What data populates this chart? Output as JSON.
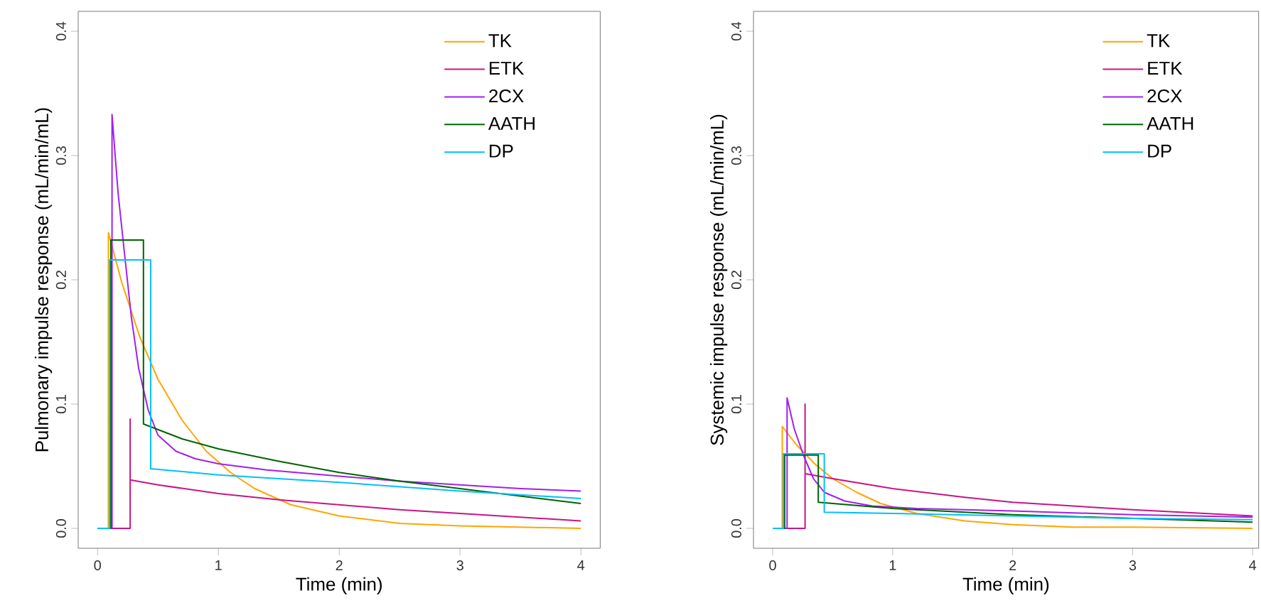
{
  "chart_data": [
    {
      "type": "line",
      "xlabel": "Time (min)",
      "ylabel": "Pulmonary impulse response (mL/min/mL)",
      "xlim": [
        -0.16,
        4.16
      ],
      "ylim": [
        -0.016,
        0.416
      ],
      "xticks": [
        0,
        1,
        2,
        3,
        4
      ],
      "yticks": [
        {
          "value": 0,
          "label": "0.0"
        },
        0.1,
        0.2,
        0.3,
        0.4
      ],
      "legend": "top right",
      "line_style": "solid",
      "marker": "none",
      "series": [
        {
          "name": "TK",
          "color": "#ffa500",
          "x": [
            0,
            0.09,
            0.09,
            0.2,
            0.35,
            0.5,
            0.7,
            0.9,
            1.1,
            1.3,
            1.6,
            2.0,
            2.5,
            3.0,
            3.5,
            4.0
          ],
          "values": [
            0,
            0,
            0.238,
            0.198,
            0.154,
            0.12,
            0.087,
            0.062,
            0.045,
            0.032,
            0.019,
            0.01,
            0.004,
            0.002,
            0.001,
            0.0
          ]
        },
        {
          "name": "ETK",
          "color": "#c71585",
          "x": [
            0,
            0.27,
            0.27,
            0.27,
            0.5,
            1,
            1.5,
            2,
            2.5,
            3,
            3.5,
            4
          ],
          "values": [
            0,
            0,
            0.088,
            0.039,
            0.035,
            0.028,
            0.023,
            0.019,
            0.015,
            0.012,
            0.009,
            0.006
          ]
        },
        {
          "name": "2CX",
          "color": "#a020f0",
          "x": [
            0,
            0.12,
            0.12,
            0.17,
            0.22,
            0.28,
            0.34,
            0.42,
            0.5,
            0.65,
            0.81,
            1.0,
            1.4,
            2,
            2.5,
            3,
            3.5,
            4
          ],
          "values": [
            0,
            0,
            0.333,
            0.27,
            0.224,
            0.17,
            0.129,
            0.095,
            0.075,
            0.062,
            0.056,
            0.052,
            0.047,
            0.042,
            0.038,
            0.035,
            0.032,
            0.03
          ]
        },
        {
          "name": "AATH",
          "color": "#006400",
          "x": [
            0,
            0.11,
            0.11,
            0.38,
            0.38,
            0.7,
            1,
            1.5,
            2,
            2.5,
            3,
            3.5,
            4
          ],
          "values": [
            0,
            0,
            0.232,
            0.232,
            0.084,
            0.072,
            0.064,
            0.054,
            0.045,
            0.038,
            0.032,
            0.026,
            0.02
          ]
        },
        {
          "name": "DP",
          "color": "#00bfff",
          "x": [
            0,
            0.1,
            0.1,
            0.44,
            0.44,
            1,
            2,
            3,
            4
          ],
          "values": [
            0,
            0,
            0.216,
            0.216,
            0.048,
            0.043,
            0.037,
            0.03,
            0.024
          ]
        }
      ]
    },
    {
      "type": "line",
      "xlabel": "Time (min)",
      "ylabel": "Systemic impulse response (mL/min/mL)",
      "xlim": [
        -0.16,
        4.05
      ],
      "ylim": [
        -0.016,
        0.416
      ],
      "xticks": [
        0,
        1,
        2,
        3,
        4
      ],
      "yticks": [
        {
          "value": 0,
          "label": "0.0"
        },
        0.1,
        0.2,
        0.3,
        0.4
      ],
      "legend": "top right",
      "line_style": "solid",
      "marker": "none",
      "series": [
        {
          "name": "TK",
          "color": "#ffa500",
          "x": [
            0,
            0.08,
            0.08,
            0.2,
            0.35,
            0.5,
            0.7,
            0.9,
            1.2,
            1.6,
            2,
            2.5,
            3,
            4
          ],
          "values": [
            0,
            0,
            0.082,
            0.067,
            0.052,
            0.04,
            0.029,
            0.02,
            0.012,
            0.006,
            0.003,
            0.001,
            0.001,
            0.0
          ]
        },
        {
          "name": "ETK",
          "color": "#c71585",
          "x": [
            0,
            0.27,
            0.27,
            0.27,
            0.5,
            1,
            1.6,
            2,
            3,
            4
          ],
          "values": [
            0,
            0,
            0.1,
            0.044,
            0.04,
            0.032,
            0.025,
            0.021,
            0.015,
            0.01
          ]
        },
        {
          "name": "2CX",
          "color": "#a020f0",
          "x": [
            0,
            0.12,
            0.12,
            0.18,
            0.26,
            0.34,
            0.43,
            0.6,
            0.83,
            1.2,
            1.6,
            2,
            3,
            4
          ],
          "values": [
            0,
            0,
            0.105,
            0.08,
            0.058,
            0.04,
            0.029,
            0.022,
            0.018,
            0.016,
            0.015,
            0.014,
            0.011,
            0.009
          ]
        },
        {
          "name": "AATH",
          "color": "#006400",
          "x": [
            0,
            0.1,
            0.1,
            0.38,
            0.38,
            1,
            2,
            3,
            4
          ],
          "values": [
            0,
            0,
            0.059,
            0.059,
            0.021,
            0.016,
            0.011,
            null,
            0.005
          ]
        },
        {
          "name": "DP",
          "color": "#00bfff",
          "x": [
            0,
            0.09,
            0.09,
            0.43,
            0.43,
            1,
            2,
            3,
            4
          ],
          "values": [
            0,
            0,
            0.06,
            0.06,
            0.013,
            0.012,
            0.01,
            0.008,
            0.007
          ]
        }
      ]
    }
  ]
}
